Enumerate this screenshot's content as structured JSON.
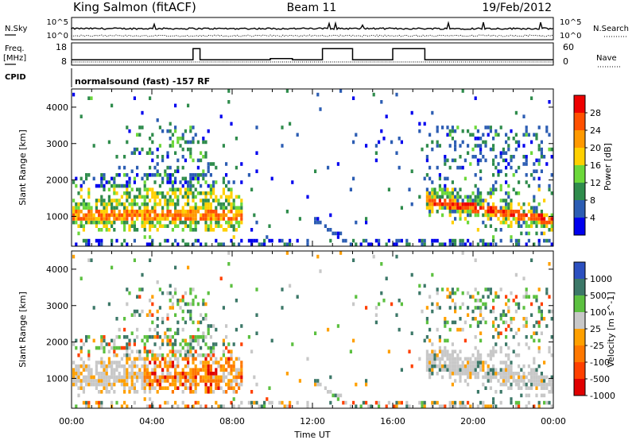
{
  "header": {
    "station": "King Salmon (fitACF)",
    "beam": "Beam 11",
    "date": "19/Feb/2012"
  },
  "top_panels": {
    "nsky": {
      "label": "N.Sky",
      "ticks": [
        "10^5",
        "10^0"
      ],
      "right_label": "N.Search",
      "right_ticks": [
        "10^5",
        "10^0"
      ]
    },
    "freq": {
      "label": "Freq.",
      "unit": "[MHz]",
      "ticks": [
        "18",
        "8"
      ],
      "values_mhz": [
        {
          "t": 0.0,
          "v": 10.2
        },
        {
          "t": 6.05,
          "v": 10.2
        },
        {
          "t": 6.05,
          "v": 16.5
        },
        {
          "t": 6.4,
          "v": 16.5
        },
        {
          "t": 6.4,
          "v": 10.2
        },
        {
          "t": 9.9,
          "v": 10.2
        },
        {
          "t": 9.9,
          "v": 10.8
        },
        {
          "t": 11.0,
          "v": 10.8
        },
        {
          "t": 11.0,
          "v": 10.2
        },
        {
          "t": 12.5,
          "v": 10.2
        },
        {
          "t": 12.5,
          "v": 16.5
        },
        {
          "t": 14.0,
          "v": 16.5
        },
        {
          "t": 14.0,
          "v": 10.2
        },
        {
          "t": 16.0,
          "v": 10.2
        },
        {
          "t": 16.0,
          "v": 16.5
        },
        {
          "t": 17.6,
          "v": 16.5
        },
        {
          "t": 17.6,
          "v": 10.2
        },
        {
          "t": 24.0,
          "v": 10.2
        }
      ],
      "right_label": "Nave",
      "right_ticks": [
        "60",
        "0"
      ]
    },
    "cpid": {
      "label": "CPID",
      "value": "normalsound (fast) -157 RF"
    }
  },
  "chart_data": [
    {
      "type": "heatmap",
      "ylabel": "Slant Range [km]",
      "xlabel": "Time UT",
      "xlim": [
        0,
        24
      ],
      "ylim": [
        180,
        4500
      ],
      "x_ticks": [
        "00:00",
        "04:00",
        "08:00",
        "12:00",
        "16:00",
        "20:00",
        "00:00"
      ],
      "y_ticks": [
        1000,
        2000,
        3000,
        4000
      ],
      "colorbar": {
        "label": "Power [dB]",
        "ticks": [
          "28",
          "24",
          "20",
          "16",
          "12",
          "8",
          "4"
        ],
        "colors": [
          "#ee0000",
          "#ff5000",
          "#ff9900",
          "#ffd000",
          "#6cd83a",
          "#2f8c4c",
          "#2c5db3",
          "#0000ee"
        ]
      }
    },
    {
      "type": "heatmap",
      "ylabel": "Slant Range [km]",
      "xlabel": "Time UT",
      "xlim": [
        0,
        24
      ],
      "ylim": [
        180,
        4500
      ],
      "x_ticks": [
        "00:00",
        "04:00",
        "08:00",
        "12:00",
        "16:00",
        "20:00",
        "00:00"
      ],
      "y_ticks": [
        1000,
        2000,
        3000,
        4000
      ],
      "colorbar": {
        "label": "Velocity [m s^-1]",
        "ticks": [
          "1000",
          "500",
          "100",
          "25",
          "-25",
          "-100",
          "-500",
          "-1000"
        ],
        "colors": [
          "#2c50c0",
          "#3c7868",
          "#5cc040",
          "#c8c8c8",
          "#ffa000",
          "#ff7800",
          "#ff4000",
          "#e00000"
        ]
      }
    }
  ]
}
